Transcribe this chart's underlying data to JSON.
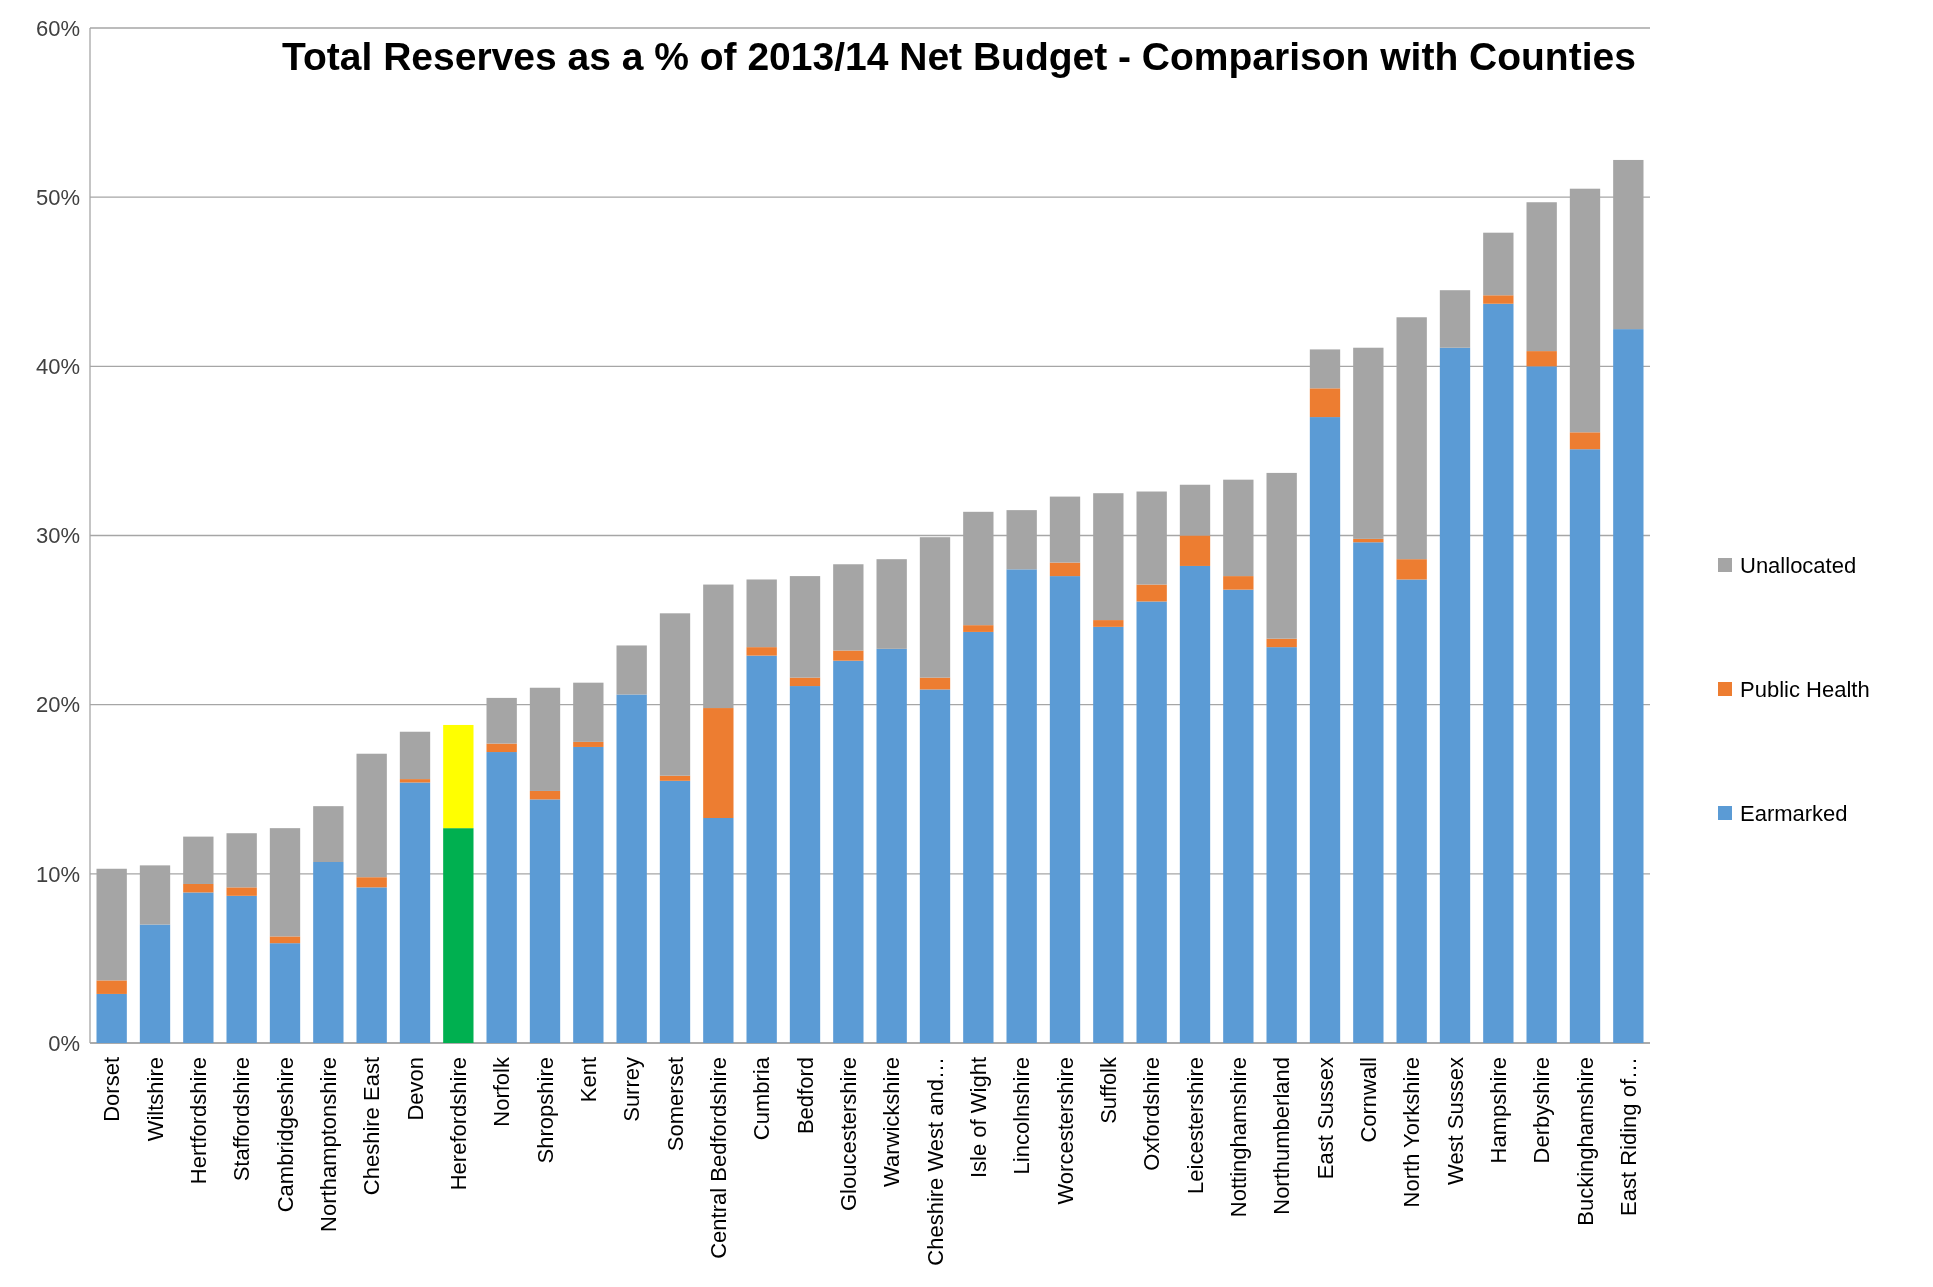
{
  "chart_data": {
    "type": "bar",
    "stacked": true,
    "title": "Total Reserves as a % of 2013/14 Net Budget - Comparison with Counties",
    "categories": [
      "Dorset",
      "Wiltshire",
      "Hertfordshire",
      "Staffordshire",
      "Cambridgeshire",
      "Northamptonshire",
      "Cheshire East",
      "Devon",
      "Herefordshire",
      "Norfolk",
      "Shropshire",
      "Kent",
      "Surrey",
      "Somerset",
      "Central Bedfordshire",
      "Cumbria",
      "Bedford",
      "Gloucestershire",
      "Warwickshire",
      "Cheshire West and…",
      "Isle of Wight",
      "Lincolnshire",
      "Worcestershire",
      "Suffolk",
      "Oxfordshire",
      "Leicestershire",
      "Nottinghamshire",
      "Northumberland",
      "East Sussex",
      "Cornwall",
      "North Yorkshire",
      "West Sussex",
      "Hampshire",
      "Derbyshire",
      "Buckinghamshire",
      "East Riding of…"
    ],
    "series": [
      {
        "name": "Earmarked",
        "color": "#5b9bd5",
        "colors": [
          "#5b9bd5",
          "#5b9bd5",
          "#5b9bd5",
          "#5b9bd5",
          "#5b9bd5",
          "#5b9bd5",
          "#5b9bd5",
          "#5b9bd5",
          "#00b050",
          "#5b9bd5",
          "#5b9bd5",
          "#5b9bd5",
          "#5b9bd5",
          "#5b9bd5",
          "#5b9bd5",
          "#5b9bd5",
          "#5b9bd5",
          "#5b9bd5",
          "#5b9bd5",
          "#5b9bd5",
          "#5b9bd5",
          "#5b9bd5",
          "#5b9bd5",
          "#5b9bd5",
          "#5b9bd5",
          "#5b9bd5",
          "#5b9bd5",
          "#5b9bd5",
          "#5b9bd5",
          "#5b9bd5",
          "#5b9bd5",
          "#5b9bd5",
          "#5b9bd5",
          "#5b9bd5",
          "#5b9bd5",
          "#5b9bd5"
        ],
        "values": [
          2.9,
          7.0,
          8.9,
          8.7,
          5.9,
          10.7,
          9.2,
          15.4,
          12.7,
          17.2,
          14.4,
          17.5,
          20.6,
          15.5,
          13.3,
          22.9,
          21.1,
          22.6,
          23.3,
          20.9,
          24.3,
          28.0,
          27.6,
          24.6,
          26.1,
          28.2,
          26.8,
          23.4,
          37.0,
          29.6,
          27.4,
          41.1,
          43.7,
          40.0,
          35.1,
          42.2
        ]
      },
      {
        "name": "Public Health",
        "color": "#ed7d31",
        "values": [
          0.8,
          0,
          0.5,
          0.5,
          0.4,
          0,
          0.6,
          0.2,
          0,
          0.5,
          0.5,
          0.3,
          0,
          0.3,
          6.5,
          0.5,
          0.5,
          0.6,
          0,
          0.7,
          0.4,
          0,
          0.8,
          0.4,
          1.0,
          1.8,
          0.8,
          0.5,
          1.7,
          0.2,
          1.2,
          0,
          0.5,
          0.9,
          1.0,
          0
        ]
      },
      {
        "name": "Unallocated",
        "color": "#a5a5a5",
        "colors": [
          "#a5a5a5",
          "#a5a5a5",
          "#a5a5a5",
          "#a5a5a5",
          "#a5a5a5",
          "#a5a5a5",
          "#a5a5a5",
          "#a5a5a5",
          "#ffff00",
          "#a5a5a5",
          "#a5a5a5",
          "#a5a5a5",
          "#a5a5a5",
          "#a5a5a5",
          "#a5a5a5",
          "#a5a5a5",
          "#a5a5a5",
          "#a5a5a5",
          "#a5a5a5",
          "#a5a5a5",
          "#a5a5a5",
          "#a5a5a5",
          "#a5a5a5",
          "#a5a5a5",
          "#a5a5a5",
          "#a5a5a5",
          "#a5a5a5",
          "#a5a5a5",
          "#a5a5a5",
          "#a5a5a5",
          "#a5a5a5",
          "#a5a5a5",
          "#a5a5a5",
          "#a5a5a5",
          "#a5a5a5",
          "#a5a5a5"
        ],
        "values": [
          6.6,
          3.5,
          2.8,
          3.2,
          6.4,
          3.3,
          7.3,
          2.8,
          6.1,
          2.7,
          6.1,
          3.5,
          2.9,
          9.6,
          7.3,
          4.0,
          6.0,
          5.1,
          5.3,
          8.3,
          6.7,
          3.5,
          3.9,
          7.5,
          5.5,
          3.0,
          5.7,
          9.8,
          2.3,
          11.3,
          14.3,
          3.4,
          3.7,
          8.8,
          14.4,
          10.0
        ]
      }
    ],
    "ylim": [
      0,
      60
    ],
    "yticks": [
      {
        "value": 0,
        "label": "0%"
      },
      {
        "value": 10,
        "label": "10%"
      },
      {
        "value": 20,
        "label": "20%"
      },
      {
        "value": 30,
        "label": "30%"
      },
      {
        "value": 40,
        "label": "40%"
      },
      {
        "value": 50,
        "label": "50%"
      },
      {
        "value": 60,
        "label": "60%"
      }
    ],
    "grid": "y",
    "legend": "right"
  }
}
